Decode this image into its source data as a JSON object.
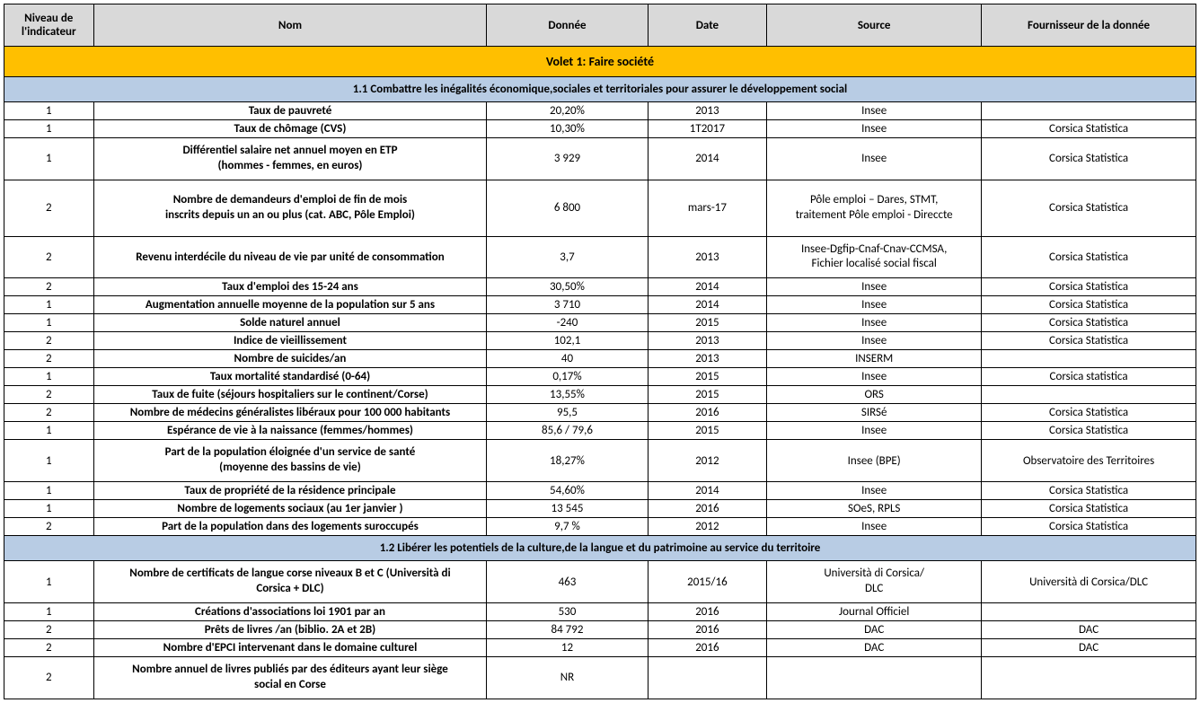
{
  "colors": {
    "header_bg": "#d9d9d9",
    "volet_bg": "#ffbf00",
    "section_bg": "#b8cce4",
    "border": "#000000",
    "text": "#000000"
  },
  "columns": {
    "niveau": "Niveau de l'indicateur",
    "nom": "Nom",
    "donnee": "Donnée",
    "date": "Date",
    "source": "Source",
    "fournisseur": "Fournisseur de la donnée"
  },
  "volet": {
    "title": "Volet 1: Faire société"
  },
  "section1": {
    "title": "1.1 Combattre les inégalités économique,sociales et territoriales pour assurer le développement social",
    "rows": [
      {
        "niveau": "1",
        "nom": "Taux de pauvreté",
        "donnee": "20,20%",
        "date": "2013",
        "source": "Insee",
        "fournisseur": ""
      },
      {
        "niveau": "1",
        "nom": "Taux de chômage (CVS)",
        "donnee": "10,30%",
        "date": "1T2017",
        "source": "Insee",
        "fournisseur": "Corsica Statistica"
      },
      {
        "niveau": "1",
        "nom": "Différentiel salaire net annuel moyen en ETP\n(hommes - femmes, en euros)",
        "donnee": "3 929",
        "date": "2014",
        "source": "Insee",
        "fournisseur": "Corsica Statistica"
      },
      {
        "niveau": "2",
        "nom": "Nombre de demandeurs d'emploi de fin de mois\ninscrits depuis un an ou plus  (cat. ABC, Pôle Emploi)",
        "donnee": "6 800",
        "date": "mars-17",
        "source": "Pôle emploi – Dares, STMT,\ntraitement Pôle emploi - Direccte",
        "fournisseur": "Corsica Statistica"
      },
      {
        "niveau": "2",
        "nom": "Revenu interdécile du niveau de vie par unité de consommation",
        "donnee": "3,7",
        "date": "2013",
        "source": "Insee-Dgfip-Cnaf-Cnav-CCMSA,\nFichier localisé social fiscal",
        "fournisseur": "Corsica Statistica"
      },
      {
        "niveau": "2",
        "nom": "Taux d'emploi des 15-24 ans",
        "donnee": "30,50%",
        "date": "2014",
        "source": "Insee",
        "fournisseur": "Corsica Statistica"
      },
      {
        "niveau": "1",
        "nom": "Augmentation annuelle moyenne de la population sur 5 ans",
        "donnee": "3 710",
        "date": "2014",
        "source": "Insee",
        "fournisseur": "Corsica Statistica"
      },
      {
        "niveau": "1",
        "nom": "Solde naturel annuel",
        "donnee": "-240",
        "date": "2015",
        "source": "Insee",
        "fournisseur": "Corsica Statistica"
      },
      {
        "niveau": "2",
        "nom": "Indice de vieillissement",
        "donnee": "102,1",
        "date": "2013",
        "source": "Insee",
        "fournisseur": "Corsica Statistica"
      },
      {
        "niveau": "2",
        "nom": "Nombre de suicides/an",
        "donnee": "40",
        "date": "2013",
        "source": "INSERM",
        "fournisseur": ""
      },
      {
        "niveau": "1",
        "nom": "Taux mortalité standardisé (0-64)",
        "donnee": "0,17%",
        "date": "2015",
        "source": "Insee",
        "fournisseur": "Corsica statistica"
      },
      {
        "niveau": "2",
        "nom": "Taux de fuite (séjours hospitaliers sur le continent/Corse)",
        "donnee": "13,55%",
        "date": "2015",
        "source": "ORS",
        "fournisseur": ""
      },
      {
        "niveau": "2",
        "nom": "Nombre de médecins généralistes libéraux pour 100 000 habitants",
        "donnee": "95,5",
        "date": "2016",
        "source": "SIRSé",
        "fournisseur": "Corsica Statistica"
      },
      {
        "niveau": "1",
        "nom": "Espérance de vie à la naissance (femmes/hommes)",
        "donnee": "85,6 / 79,6",
        "date": "2015",
        "source": "Insee",
        "fournisseur": "Corsica Statistica"
      },
      {
        "niveau": "1",
        "nom": "Part de la population éloignée d'un service de santé\n(moyenne des bassins de vie)",
        "donnee": "18,27%",
        "date": "2012",
        "source": "Insee (BPE)",
        "fournisseur": "Observatoire des Territoires"
      },
      {
        "niveau": "1",
        "nom": "Taux de propriété de la résidence principale",
        "donnee": "54,60%",
        "date": "2014",
        "source": "Insee",
        "fournisseur": "Corsica Statistica"
      },
      {
        "niveau": "1",
        "nom": "Nombre de logements  sociaux (au 1er janvier )",
        "donnee": "13 545",
        "date": "2016",
        "source": "SOeS, RPLS",
        "fournisseur": "Corsica Statistica"
      },
      {
        "niveau": "2",
        "nom": "Part de la population dans des logements suroccupés",
        "donnee": "9,7 %",
        "date": "2012",
        "source": "Insee",
        "fournisseur": "Corsica Statistica"
      }
    ]
  },
  "section2": {
    "title": "1.2 Libérer les potentiels de la culture,de la langue et du patrimoine au service du territoire",
    "rows": [
      {
        "niveau": "1",
        "nom": "Nombre de certificats de langue corse niveaux B et C (Università di\nCorsica + DLC)",
        "donnee": "463",
        "date": "2015/16",
        "source": "Università di Corsica/\nDLC",
        "fournisseur": "Università di Corsica/DLC"
      },
      {
        "niveau": "1",
        "nom": "Créations d'associations loi 1901 par an",
        "donnee": "530",
        "date": "2016",
        "source": "Journal Officiel",
        "fournisseur": ""
      },
      {
        "niveau": "2",
        "nom": "Prêts de livres /an (biblio. 2A et 2B)",
        "donnee": "84 792",
        "date": "2016",
        "source": "DAC",
        "fournisseur": "DAC"
      },
      {
        "niveau": "2",
        "nom": "Nombre d'EPCI intervenant dans le domaine culturel",
        "donnee": "12",
        "date": "2016",
        "source": "DAC",
        "fournisseur": "DAC"
      },
      {
        "niveau": "2",
        "nom": "Nombre annuel de livres publiés par des éditeurs ayant leur siège\nsocial en Corse",
        "donnee": "NR",
        "date": "",
        "source": "",
        "fournisseur": ""
      }
    ]
  }
}
